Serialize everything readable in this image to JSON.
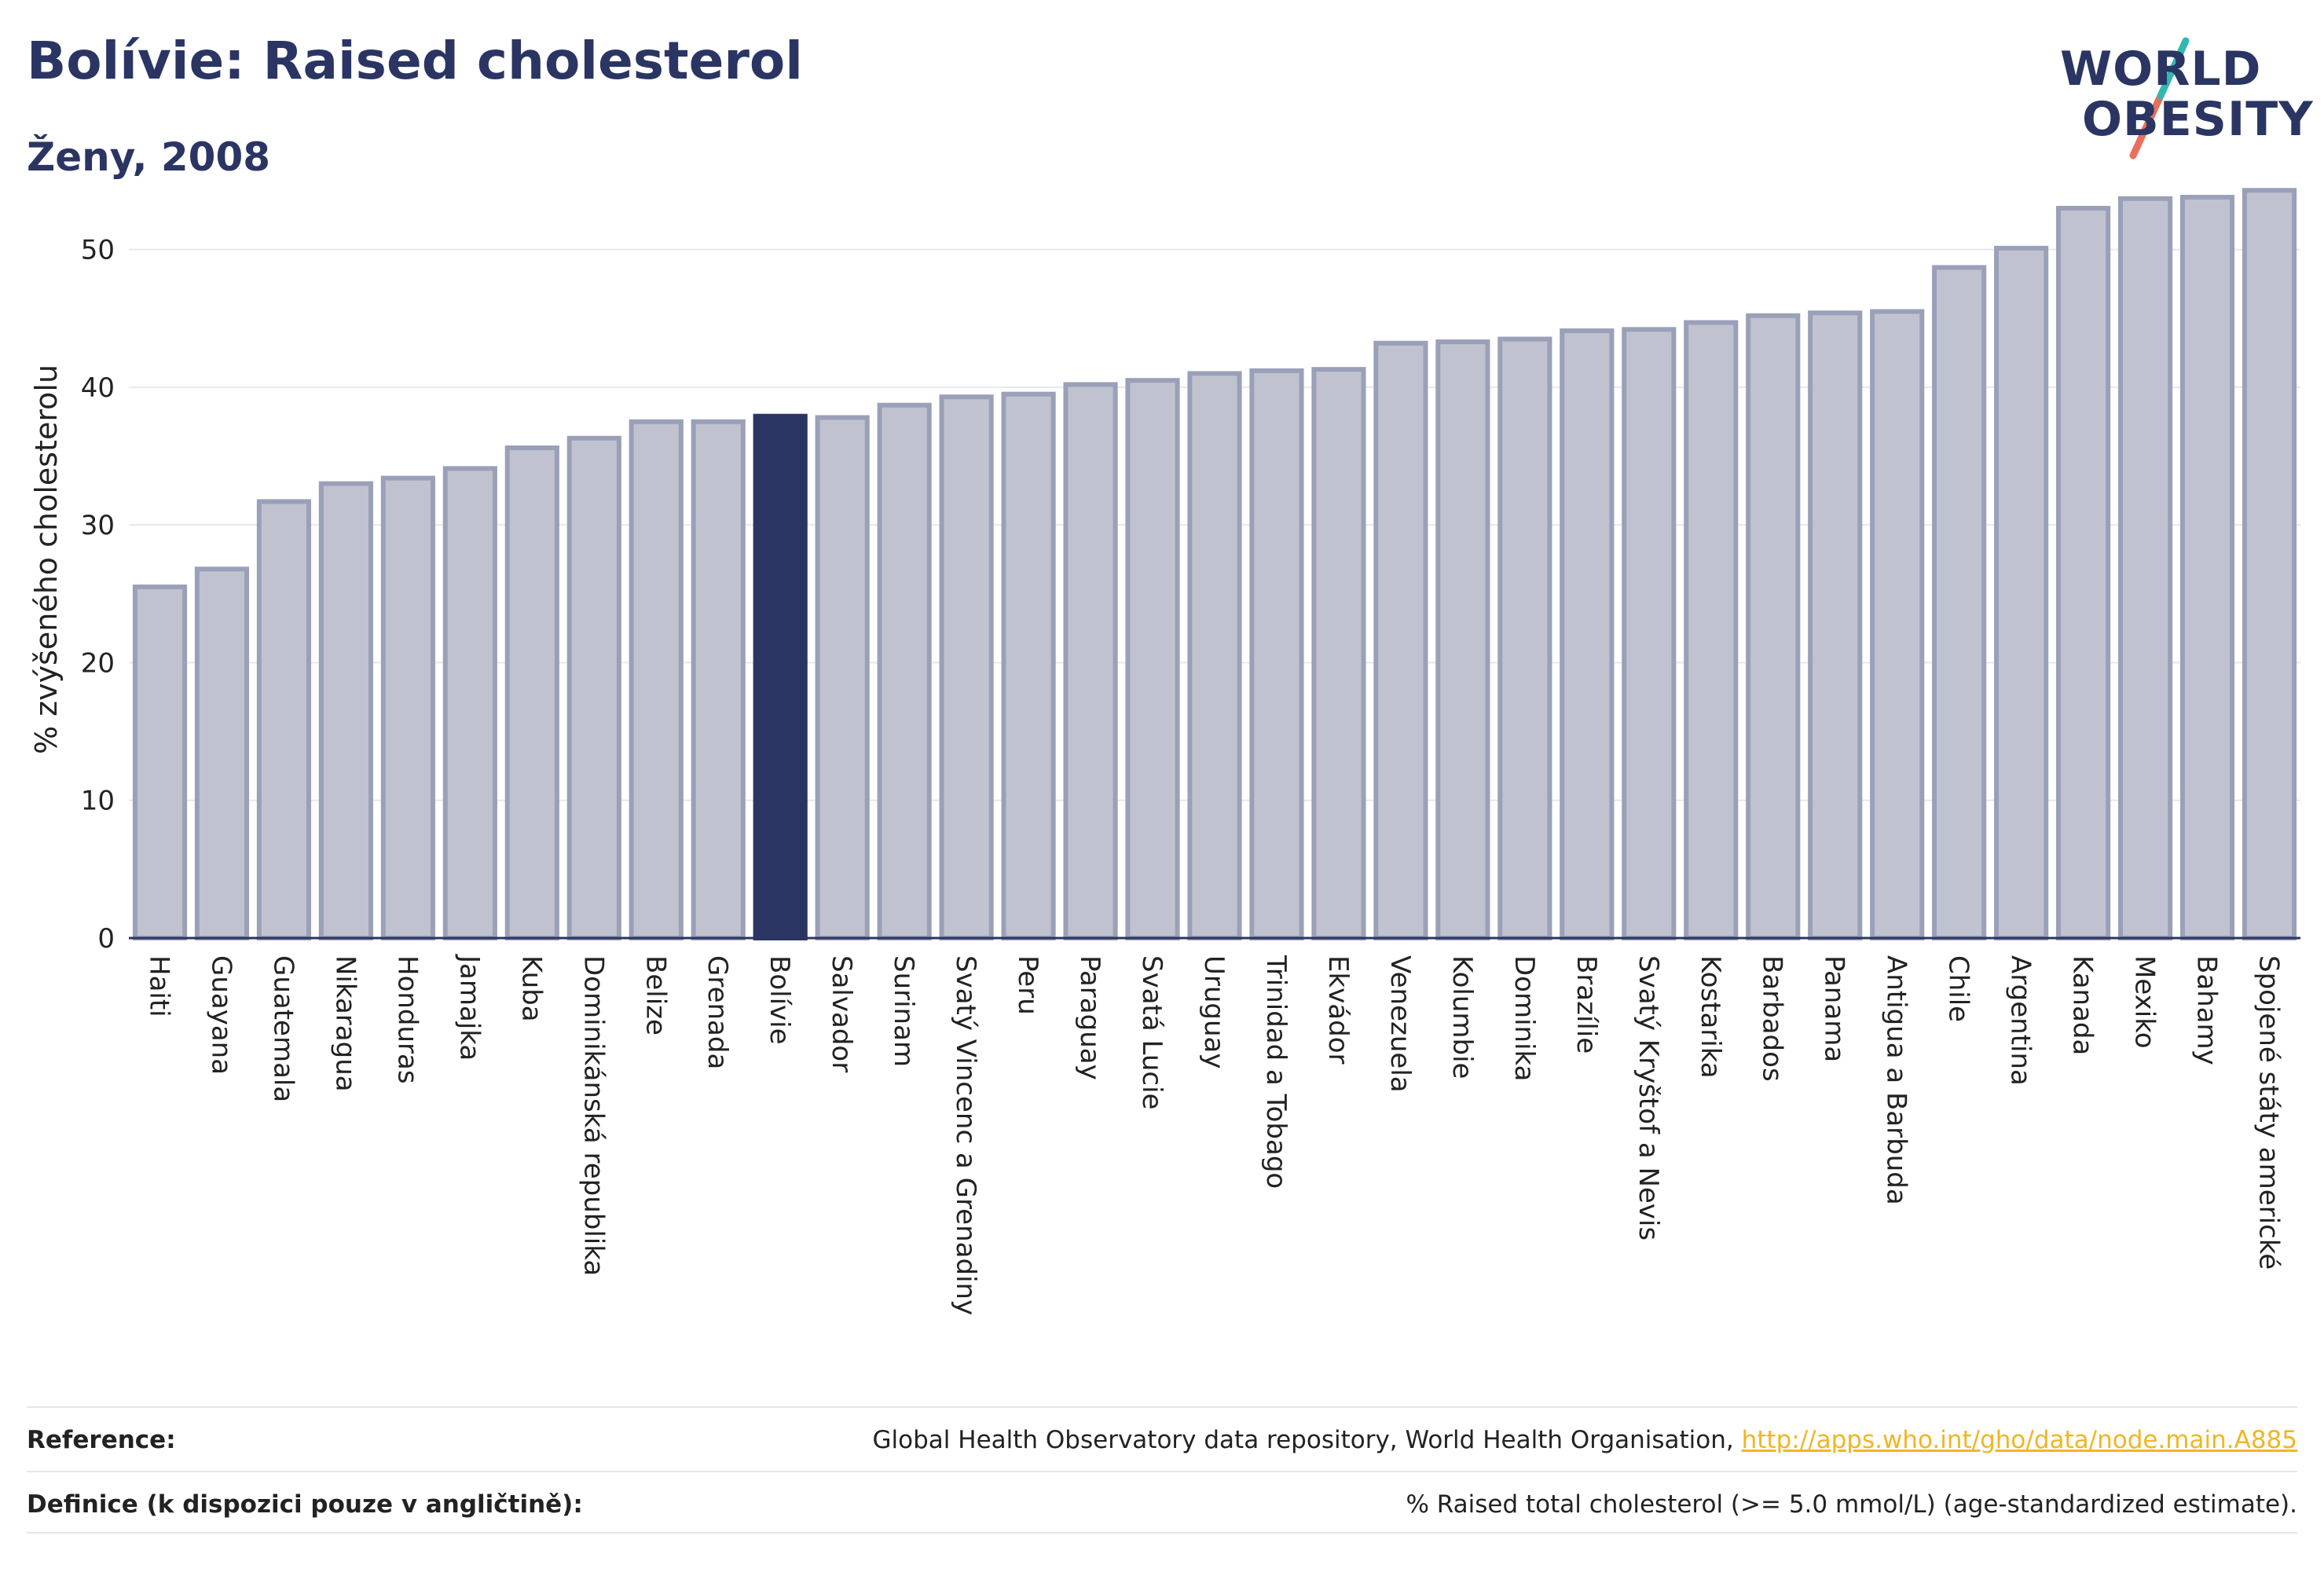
{
  "title": "Bolívie: Raised cholesterol",
  "subtitle": "Ženy, 2008",
  "logo": {
    "line1": "WORLD",
    "line2": "OBESITY"
  },
  "colors": {
    "highlight": "#2b3563",
    "bar_fill": "#c0c3cf",
    "bar_stroke": "#9aa0b8",
    "accent_red": "#e8705a",
    "accent_teal": "#33b8b0",
    "link": "#f0b623"
  },
  "chart_data": {
    "type": "bar",
    "ylabel": "% zvýšeného cholesterolu",
    "xlabel": "",
    "ylim": [
      0,
      55
    ],
    "yticks": [
      0,
      10,
      20,
      30,
      40,
      50
    ],
    "grid": true,
    "highlight": "Bolívie",
    "categories": [
      "Haiti",
      "Guayana",
      "Guatemala",
      "Nikaragua",
      "Honduras",
      "Jamajka",
      "Kuba",
      "Dominikánská republika",
      "Belize",
      "Grenada",
      "Bolívie",
      "Salvador",
      "Surinam",
      "Svatý Vincenc a Grenadiny",
      "Peru",
      "Paraguay",
      "Svatá Lucie",
      "Uruguay",
      "Trinidad a Tobago",
      "Ekvádor",
      "Venezuela",
      "Kolumbie",
      "Dominika",
      "Brazílie",
      "Svatý Kryštof a Nevis",
      "Kostarika",
      "Barbados",
      "Panama",
      "Antigua a Barbuda",
      "Chile",
      "Argentina",
      "Kanada",
      "Mexiko",
      "Bahamy",
      "Spojené státy americké"
    ],
    "values": [
      25.5,
      26.8,
      31.7,
      33.0,
      33.4,
      34.1,
      35.6,
      36.3,
      37.5,
      37.5,
      37.9,
      37.8,
      38.7,
      39.3,
      39.5,
      40.2,
      40.5,
      41.0,
      41.2,
      41.3,
      43.2,
      43.3,
      43.5,
      44.1,
      44.2,
      44.7,
      45.2,
      45.4,
      45.5,
      48.7,
      50.1,
      53.0,
      53.7,
      53.8,
      54.3
    ]
  },
  "reference": {
    "label": "Reference:",
    "text": "Global Health Observatory data repository, World Health Organisation, ",
    "link": "http://apps.who.int/gho/data/node.main.A885"
  },
  "definition": {
    "label": "Definice (k dispozici pouze v angličtině):",
    "text": "% Raised total cholesterol (>= 5.0 mmol/L) (age-standardized estimate)."
  }
}
